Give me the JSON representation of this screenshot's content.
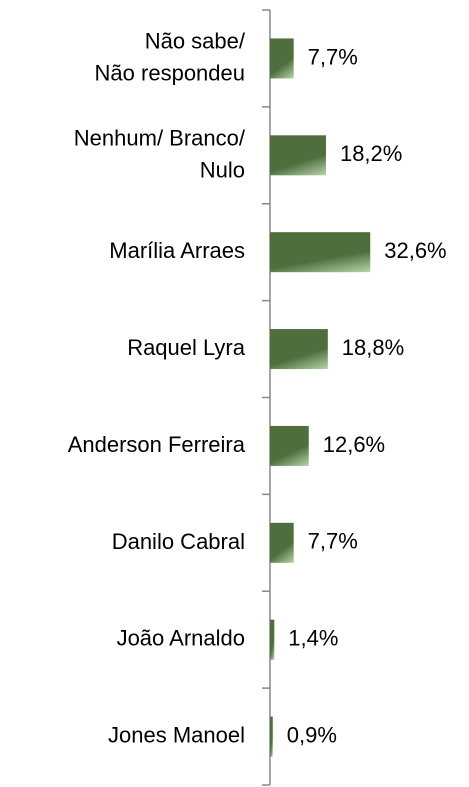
{
  "chart_data": {
    "type": "barh",
    "categories": [
      [
        "Não sabe/",
        "Não respondeu"
      ],
      [
        "Nenhum/ Branco/",
        "Nulo"
      ],
      [
        "Marília Arraes"
      ],
      [
        "Raquel Lyra"
      ],
      [
        "Anderson Ferreira"
      ],
      [
        "Danilo Cabral"
      ],
      [
        "João Arnaldo"
      ],
      [
        "Jones Manoel"
      ]
    ],
    "values": [
      7.7,
      18.2,
      32.6,
      18.8,
      12.6,
      7.7,
      1.4,
      0.9
    ],
    "value_labels": [
      "7,7%",
      "18,2%",
      "32,6%",
      "18,8%",
      "12,6%",
      "7,7%",
      "1,4%",
      "0,9%"
    ],
    "color": "#4e6e3d",
    "xlim": [
      0,
      40
    ]
  }
}
